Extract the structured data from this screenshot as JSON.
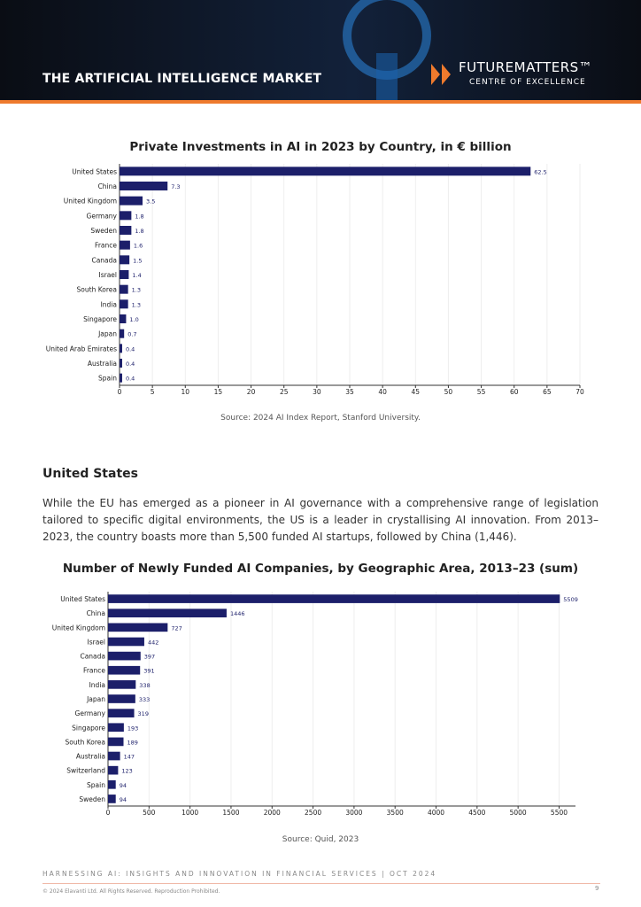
{
  "header": {
    "title": "THE ARTIFICIAL INTELLIGENCE MARKET",
    "logo": "FUTUREMATTERS™",
    "logo_sub": "CENTRE OF EXCELLENCE"
  },
  "chart_data": [
    {
      "type": "hbar",
      "title": "Private Investments in AI in 2023 by Country, in € billion",
      "categories": [
        "United States",
        "China",
        "United Kingdom",
        "Germany",
        "Sweden",
        "France",
        "Canada",
        "Israel",
        "South Korea",
        "India",
        "Singapore",
        "Japan",
        "United Arab Emirates",
        "Australia",
        "Spain"
      ],
      "values": [
        62.5,
        7.3,
        3.5,
        1.8,
        1.8,
        1.6,
        1.5,
        1.4,
        1.3,
        1.3,
        1.0,
        0.7,
        0.4,
        0.4,
        0.4
      ],
      "value_labels": [
        "62.5",
        "7.3",
        "3.5",
        "1.8",
        "1.8",
        "1.6",
        "1.5",
        "1.4",
        "1.3",
        "1.3",
        "1.0",
        "0.7",
        "0.4",
        "0.4",
        "0.4"
      ],
      "color": "#1c1f6a",
      "xlim": [
        0,
        70
      ],
      "xticks": [
        0,
        5,
        10,
        15,
        20,
        25,
        30,
        35,
        40,
        45,
        50,
        55,
        60,
        65,
        70
      ],
      "grid": true,
      "source": "Source: 2024 AI Index Report, Stanford University."
    },
    {
      "type": "hbar",
      "title": "Number of Newly Funded AI Companies, by Geographic Area, 2013–23 (sum)",
      "categories": [
        "United States",
        "China",
        "United Kingdom",
        "Israel",
        "Canada",
        "France",
        "India",
        "Japan",
        "Germany",
        "Singapore",
        "South Korea",
        "Australia",
        "Switzerland",
        "Spain",
        "Sweden"
      ],
      "values": [
        5509,
        1446,
        727,
        442,
        397,
        391,
        338,
        333,
        319,
        193,
        189,
        147,
        123,
        94,
        94
      ],
      "color": "#1c1f6a",
      "xlim": [
        0,
        5700
      ],
      "xticks": [
        0,
        500,
        1000,
        1500,
        2000,
        2500,
        3000,
        3500,
        4000,
        4500,
        5000,
        5500
      ],
      "grid": true,
      "source": "Source: Quid, 2023"
    }
  ],
  "section": {
    "heading": "United States",
    "paragraph": "While the EU has emerged as a pioneer in AI governance with a comprehensive range of legislation tailored to specific digital environments, the US is a leader in crystallising AI innovation. From 2013–2023, the country boasts more than 5,500 funded AI startups, followed by China (1,446)."
  },
  "footer": {
    "series": "HARNESSING AI: INSIGHTS AND INNOVATION IN FINANCIAL SERVICES  |  OCT 2024",
    "copyright": "© 2024 Elavanti Ltd. All Rights Reserved. Reproduction Prohibited.",
    "page": "9"
  }
}
